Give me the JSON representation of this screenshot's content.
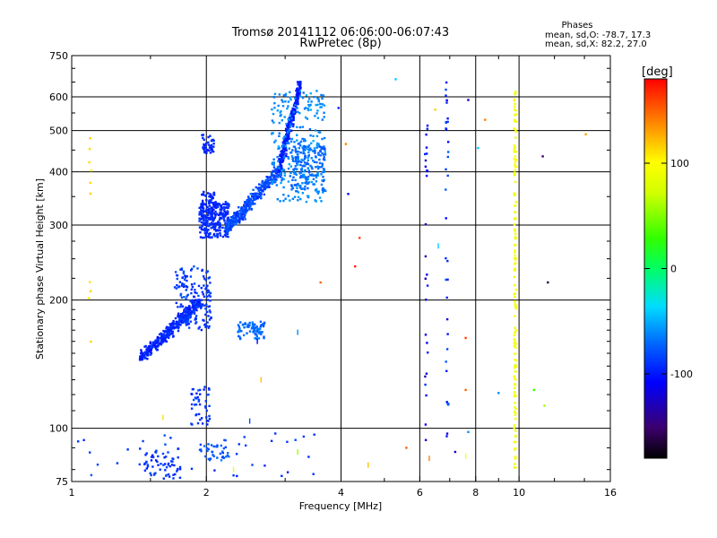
{
  "chart_data": {
    "type": "scatter",
    "title": "Tromsø 20141112 06:06:00-06:07:43",
    "subtitle": "RwPretec (8p)",
    "xlabel": "Frequency [MHz]",
    "ylabel": "Stationary phase Virtual Height [km]",
    "x_scale": "log",
    "y_scale": "log",
    "xlim": [
      1,
      16
    ],
    "ylim": [
      75,
      750
    ],
    "x_ticks": [
      1,
      2,
      4,
      6,
      8,
      10,
      16
    ],
    "x_tick_labels": [
      "1",
      "2",
      "4",
      "6",
      "8",
      "10",
      "16"
    ],
    "y_ticks": [
      75,
      100,
      200,
      300,
      400,
      500,
      600,
      750
    ],
    "y_tick_labels": [
      "75",
      "100",
      "200",
      "300",
      "400",
      "500",
      "600",
      "750"
    ],
    "grid": true,
    "stats": {
      "header": "Phases",
      "line_o": "mean, sd,O: -78.7, 17.3",
      "line_x": "mean, sd,X: 82.2, 27.0"
    },
    "colorbar": {
      "label": "[deg]",
      "range": [
        -180,
        180
      ],
      "ticks": [
        100,
        0,
        -100
      ],
      "tick_labels": [
        "100",
        "0",
        "-100"
      ]
    },
    "point_groups": [
      {
        "name": "o-trace-low",
        "x": [
          1.42,
          1.95
        ],
        "y": [
          145,
          200
        ],
        "phase_mean": -95,
        "phase_sd": 15,
        "n": 420
      },
      {
        "name": "o-trace-spread",
        "x": [
          1.7,
          2.05
        ],
        "y": [
          170,
          240
        ],
        "phase_mean": -88,
        "phase_sd": 15,
        "n": 160
      },
      {
        "name": "o-f1-cusp",
        "x": [
          1.93,
          2.25
        ],
        "y": [
          280,
          340
        ],
        "phase_mean": -92,
        "phase_sd": 12,
        "n": 240
      },
      {
        "name": "o-f1-upper",
        "x": [
          1.95,
          2.1
        ],
        "y": [
          300,
          360
        ],
        "phase_mean": -95,
        "phase_sd": 10,
        "n": 80
      },
      {
        "name": "o-f2-rise",
        "x": [
          2.2,
          2.95
        ],
        "y": [
          290,
          410
        ],
        "phase_mean": -82,
        "phase_sd": 18,
        "n": 380
      },
      {
        "name": "o-f2-steep",
        "x": [
          2.9,
          3.25
        ],
        "y": [
          400,
          650
        ],
        "phase_mean": -98,
        "phase_sd": 12,
        "n": 320
      },
      {
        "name": "o-f2-cyan",
        "x": [
          2.8,
          3.7
        ],
        "y": [
          340,
          620
        ],
        "phase_mean": -60,
        "phase_sd": 15,
        "n": 260
      },
      {
        "name": "o-f2-band",
        "x": [
          3.1,
          3.7
        ],
        "y": [
          360,
          460
        ],
        "phase_mean": -70,
        "phase_sd": 15,
        "n": 160
      },
      {
        "name": "o-f-patch",
        "x": [
          1.95,
          2.08
        ],
        "y": [
          440,
          490
        ],
        "phase_mean": -95,
        "phase_sd": 10,
        "n": 40
      },
      {
        "name": "e-blob",
        "x": [
          2.35,
          2.7
        ],
        "y": [
          162,
          178
        ],
        "phase_mean": -70,
        "phase_sd": 15,
        "n": 80
      },
      {
        "name": "e-patch-mid",
        "x": [
          1.85,
          2.05
        ],
        "y": [
          102,
          125
        ],
        "phase_mean": -90,
        "phase_sd": 15,
        "n": 45
      },
      {
        "name": "e-bottom-1",
        "x": [
          1.45,
          1.75
        ],
        "y": [
          76,
          90
        ],
        "phase_mean": -90,
        "phase_sd": 15,
        "n": 60
      },
      {
        "name": "e-bottom-2",
        "x": [
          1.9,
          2.25
        ],
        "y": [
          84,
          92
        ],
        "phase_mean": -75,
        "phase_sd": 20,
        "n": 35
      },
      {
        "name": "low-scatter",
        "x": [
          1.0,
          3.5
        ],
        "y": [
          76,
          98
        ],
        "phase_mean": -85,
        "phase_sd": 20,
        "n": 40
      },
      {
        "name": "col-6-2",
        "x": [
          6.15,
          6.25
        ],
        "y": [
          90,
          520
        ],
        "phase_mean": -110,
        "phase_sd": 30,
        "n": 26
      },
      {
        "name": "col-6-8",
        "x": [
          6.85,
          6.95
        ],
        "y": [
          95,
          650
        ],
        "phase_mean": -90,
        "phase_sd": 40,
        "n": 34
      },
      {
        "name": "col-9-8",
        "x": [
          9.75,
          9.85
        ],
        "y": [
          78,
          630
        ],
        "phase_mean": 95,
        "phase_sd": 12,
        "n": 150
      },
      {
        "name": "left-column",
        "x": [
          1.09,
          1.11
        ],
        "y": [
          125,
          480
        ],
        "phase_mean": 110,
        "phase_sd": 15,
        "n": 10
      }
    ],
    "isolated_points": [
      {
        "x": 3.95,
        "y": 565,
        "phase": -100
      },
      {
        "x": 4.15,
        "y": 355,
        "phase": -110
      },
      {
        "x": 4.4,
        "y": 280,
        "phase": 160
      },
      {
        "x": 4.3,
        "y": 240,
        "phase": 170
      },
      {
        "x": 5.3,
        "y": 660,
        "phase": -40
      },
      {
        "x": 6.5,
        "y": 560,
        "phase": 115
      },
      {
        "x": 7.7,
        "y": 590,
        "phase": -120
      },
      {
        "x": 8.4,
        "y": 530,
        "phase": 140
      },
      {
        "x": 8.1,
        "y": 455,
        "phase": -40
      },
      {
        "x": 11.3,
        "y": 435,
        "phase": -150
      },
      {
        "x": 11.6,
        "y": 220,
        "phase": -160
      },
      {
        "x": 14.1,
        "y": 490,
        "phase": 130
      },
      {
        "x": 10.8,
        "y": 123,
        "phase": 30
      },
      {
        "x": 11.4,
        "y": 113,
        "phase": 60
      },
      {
        "x": 9.0,
        "y": 121,
        "phase": -60
      },
      {
        "x": 7.6,
        "y": 123,
        "phase": 150
      },
      {
        "x": 7.6,
        "y": 163,
        "phase": 160
      },
      {
        "x": 5.6,
        "y": 90,
        "phase": 150
      },
      {
        "x": 7.7,
        "y": 98,
        "phase": -60
      },
      {
        "x": 7.2,
        "y": 88,
        "phase": -120
      },
      {
        "x": 4.1,
        "y": 465,
        "phase": 140
      },
      {
        "x": 3.6,
        "y": 220,
        "phase": 150
      }
    ],
    "stroke_marks": [
      {
        "x": 2.6,
        "y": 160,
        "phase": -110
      },
      {
        "x": 3.2,
        "y": 168,
        "phase": -60
      },
      {
        "x": 1.6,
        "y": 106,
        "phase": 110
      },
      {
        "x": 2.5,
        "y": 104,
        "phase": -80
      },
      {
        "x": 2.65,
        "y": 130,
        "phase": 120
      },
      {
        "x": 6.3,
        "y": 85,
        "phase": 140
      },
      {
        "x": 7.6,
        "y": 86,
        "phase": 100
      },
      {
        "x": 4.6,
        "y": 82,
        "phase": 120
      },
      {
        "x": 3.2,
        "y": 88,
        "phase": 60
      },
      {
        "x": 2.3,
        "y": 80,
        "phase": 90
      },
      {
        "x": 6.6,
        "y": 268,
        "phase": -40
      }
    ]
  }
}
